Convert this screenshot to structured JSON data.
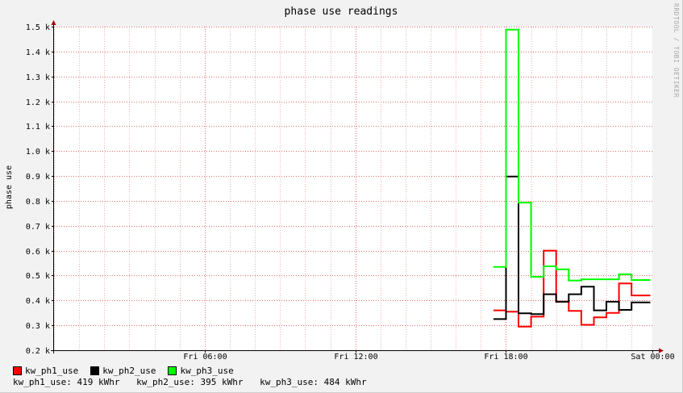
{
  "chart_data": {
    "type": "line",
    "title": "phase use readings",
    "ylabel": "phase use",
    "xlabel": "",
    "watermark": "RRDTOOL / TOBI OETIKER",
    "x_range_hours": [
      0,
      23.83
    ],
    "ylim": [
      200,
      1500
    ],
    "y_ticks": [
      {
        "value": 200,
        "label": "0.2 k"
      },
      {
        "value": 300,
        "label": "0.3 k"
      },
      {
        "value": 400,
        "label": "0.4 k"
      },
      {
        "value": 500,
        "label": "0.5 k"
      },
      {
        "value": 600,
        "label": "0.6 k"
      },
      {
        "value": 700,
        "label": "0.7 k"
      },
      {
        "value": 800,
        "label": "0.8 k"
      },
      {
        "value": 900,
        "label": "0.9 k"
      },
      {
        "value": 1000,
        "label": "1.0 k"
      },
      {
        "value": 1100,
        "label": "1.1 k"
      },
      {
        "value": 1200,
        "label": "1.2 k"
      },
      {
        "value": 1300,
        "label": "1.3 k"
      },
      {
        "value": 1400,
        "label": "1.4 k"
      },
      {
        "value": 1500,
        "label": "1.5 k"
      }
    ],
    "x_ticks": [
      {
        "value": 6,
        "label": "Fri 06:00"
      },
      {
        "value": 12,
        "label": "Fri 12:00"
      },
      {
        "value": 18,
        "label": "Fri 18:00"
      },
      {
        "value": 23.83,
        "label": "Sat 00:00"
      }
    ],
    "grid": true,
    "series": [
      {
        "name": "kw_ph1_use",
        "color": "#ff0000",
        "points": [
          [
            17.5,
            360
          ],
          [
            18.0,
            355
          ],
          [
            18.5,
            295
          ],
          [
            19.0,
            335
          ],
          [
            19.5,
            600
          ],
          [
            20.0,
            395
          ],
          [
            20.5,
            358
          ],
          [
            21.0,
            302
          ],
          [
            21.5,
            332
          ],
          [
            22.0,
            350
          ],
          [
            22.5,
            468
          ],
          [
            23.0,
            420
          ],
          [
            23.5,
            420
          ]
        ]
      },
      {
        "name": "kw_ph2_use",
        "color": "#000000",
        "points": [
          [
            17.5,
            325
          ],
          [
            18.0,
            898
          ],
          [
            18.5,
            348
          ],
          [
            19.0,
            345
          ],
          [
            19.5,
            425
          ],
          [
            20.0,
            395
          ],
          [
            20.5,
            425
          ],
          [
            21.0,
            455
          ],
          [
            21.5,
            360
          ],
          [
            22.0,
            395
          ],
          [
            22.5,
            362
          ],
          [
            23.0,
            392
          ],
          [
            23.5,
            392
          ]
        ]
      },
      {
        "name": "kw_ph3_use",
        "color": "#00ff00",
        "points": [
          [
            17.5,
            535
          ],
          [
            18.0,
            1488
          ],
          [
            18.5,
            793
          ],
          [
            19.0,
            495
          ],
          [
            19.5,
            537
          ],
          [
            20.0,
            525
          ],
          [
            20.5,
            480
          ],
          [
            21.0,
            485
          ],
          [
            21.5,
            485
          ],
          [
            22.0,
            485
          ],
          [
            22.5,
            505
          ],
          [
            23.0,
            482
          ],
          [
            23.5,
            482
          ]
        ]
      }
    ]
  },
  "legend": {
    "items": [
      {
        "label": "kw_ph1_use",
        "color": "#ff0000"
      },
      {
        "label": "kw_ph2_use",
        "color": "#000000"
      },
      {
        "label": "kw_ph3_use",
        "color": "#00ff00"
      }
    ],
    "summary": [
      {
        "text": "kw_ph1_use: 419 kWhr"
      },
      {
        "text": "kw_ph2_use: 395 kWhr"
      },
      {
        "text": "kw_ph3_use: 484 kWhr"
      }
    ]
  }
}
